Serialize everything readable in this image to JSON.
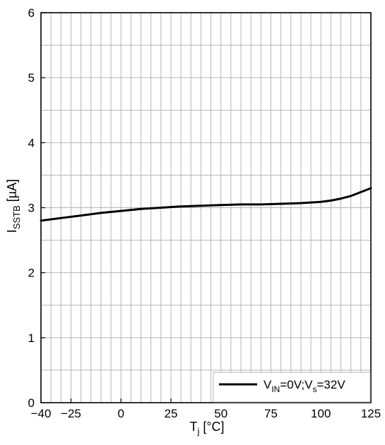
{
  "chart_data": {
    "type": "line",
    "xlim": [
      -40,
      125
    ],
    "ylim": [
      0,
      6
    ],
    "x_ticks": [
      -40,
      -25,
      0,
      25,
      50,
      75,
      100,
      125
    ],
    "x_tick_labels": [
      "−40",
      "−25",
      "0",
      "25",
      "50",
      "75",
      "100",
      "125"
    ],
    "x_minor_step": 5,
    "y_ticks": [
      0,
      1,
      2,
      3,
      4,
      5,
      6
    ],
    "y_tick_labels": [
      "0",
      "1",
      "2",
      "3",
      "4",
      "5",
      "6"
    ],
    "y_minor_step": 0.5,
    "grid": true,
    "xlabel": {
      "main": "T",
      "sub": "j",
      "unit": " [°C]"
    },
    "ylabel": {
      "main": "I",
      "sub": "SSTB",
      "unit": " [µA]"
    },
    "legend_position": "bottom-right",
    "series": [
      {
        "legend": {
          "v1": "V",
          "v1sub": "IN",
          "mid": "=0V;V",
          "v2sub": "s",
          "end": "=32V"
        },
        "color": "#000000",
        "x": [
          -40,
          -30,
          -20,
          -10,
          0,
          10,
          20,
          30,
          40,
          50,
          60,
          70,
          80,
          90,
          100,
          105,
          110,
          115,
          120,
          125
        ],
        "y": [
          2.8,
          2.84,
          2.88,
          2.92,
          2.95,
          2.98,
          3.0,
          3.02,
          3.03,
          3.04,
          3.05,
          3.05,
          3.06,
          3.07,
          3.09,
          3.11,
          3.14,
          3.18,
          3.24,
          3.3
        ]
      }
    ]
  }
}
